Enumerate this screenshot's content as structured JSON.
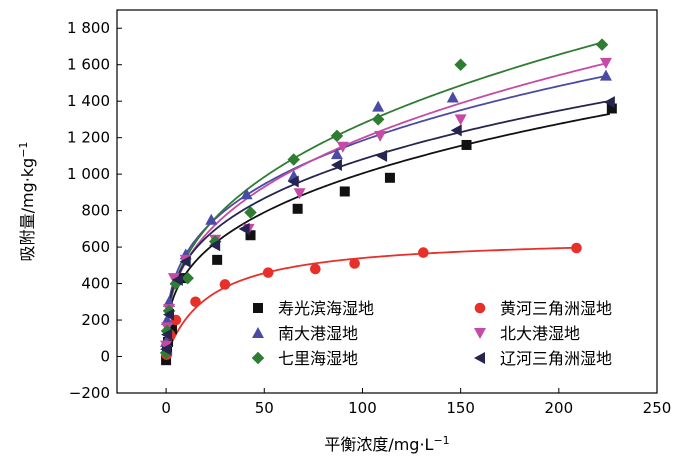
{
  "chart_data": {
    "type": "scatter",
    "xlabel": "平衡浓度/mg·L",
    "xlabel_sup": "−1",
    "ylabel": "吸附量/mg·kg",
    "ylabel_sup": "−1",
    "xlim": [
      -25,
      250
    ],
    "ylim": [
      -200,
      1900
    ],
    "xticks": [
      0,
      50,
      100,
      150,
      200,
      250
    ],
    "xtick_labels": [
      "0",
      "50",
      "100",
      "150",
      "200",
      "250"
    ],
    "yticks": [
      -200,
      0,
      200,
      400,
      600,
      800,
      1000,
      1200,
      1400,
      1600,
      1800
    ],
    "ytick_labels": [
      "−200",
      "0",
      "200",
      "400",
      "600",
      "800",
      "1 000",
      "1 200",
      "1 400",
      "1 600",
      "1 800"
    ],
    "grid": false,
    "legend_position": "bottom-center, inside plot",
    "series": [
      {
        "name": "寿光滨海湿地",
        "marker": "square",
        "color": "#111111",
        "x": [
          0,
          0.5,
          1,
          3,
          8,
          26,
          43,
          67,
          91,
          114,
          153,
          227
        ],
        "y": [
          -20,
          30,
          80,
          150,
          430,
          530,
          665,
          810,
          905,
          980,
          1160,
          1360
        ],
        "fit": {
          "a": 205,
          "b": 0.345,
          "xmax": 226
        }
      },
      {
        "name": "黄河三角洲湿地",
        "marker": "circle",
        "color": "#e8302a",
        "x": [
          0.3,
          2,
          5,
          15,
          30,
          52,
          76,
          96,
          131,
          209
        ],
        "y": [
          10,
          120,
          200,
          300,
          395,
          460,
          480,
          510,
          570,
          595
        ],
        "fit_type": "langmuir",
        "fit": {
          "qm": 660,
          "K": 0.045,
          "xmax": 210
        }
      },
      {
        "name": "南大港湿地",
        "marker": "triangle-up",
        "color": "#4b4ba6",
        "x": [
          0,
          0.5,
          1.5,
          5,
          10,
          23,
          41,
          65,
          87,
          108,
          146,
          224
        ],
        "y": [
          80,
          200,
          300,
          420,
          560,
          750,
          890,
          990,
          1110,
          1370,
          1420,
          1540
        ],
        "fit": {
          "a": 265,
          "b": 0.325,
          "xmax": 224
        }
      },
      {
        "name": "北大港湿地",
        "marker": "triangle-down",
        "color": "#c64aa5",
        "x": [
          0,
          0.5,
          1.5,
          4,
          10,
          25,
          42,
          68,
          90,
          109,
          150,
          224
        ],
        "y": [
          60,
          160,
          260,
          430,
          530,
          640,
          700,
          895,
          1150,
          1210,
          1300,
          1610
        ],
        "fit": {
          "a": 223,
          "b": 0.365,
          "xmax": 224
        }
      },
      {
        "name": "七里海湿地",
        "marker": "diamond",
        "color": "#2e7d32",
        "x": [
          0,
          0.5,
          1.5,
          5,
          11,
          25,
          43,
          65,
          87,
          108,
          150,
          222
        ],
        "y": [
          20,
          140,
          250,
          400,
          430,
          630,
          790,
          1080,
          1210,
          1300,
          1600,
          1710
        ],
        "fit": {
          "a": 227,
          "b": 0.375,
          "xmax": 222
        }
      },
      {
        "name": "辽河三角洲湿地",
        "marker": "triangle-left",
        "color": "#25254f",
        "x": [
          0,
          0.5,
          1.5,
          6,
          10,
          25,
          40,
          65,
          87,
          110,
          148,
          226
        ],
        "y": [
          40,
          120,
          230,
          420,
          520,
          610,
          700,
          960,
          1050,
          1100,
          1240,
          1395
        ],
        "fit": {
          "a": 250,
          "b": 0.318,
          "xmax": 226
        }
      }
    ]
  }
}
